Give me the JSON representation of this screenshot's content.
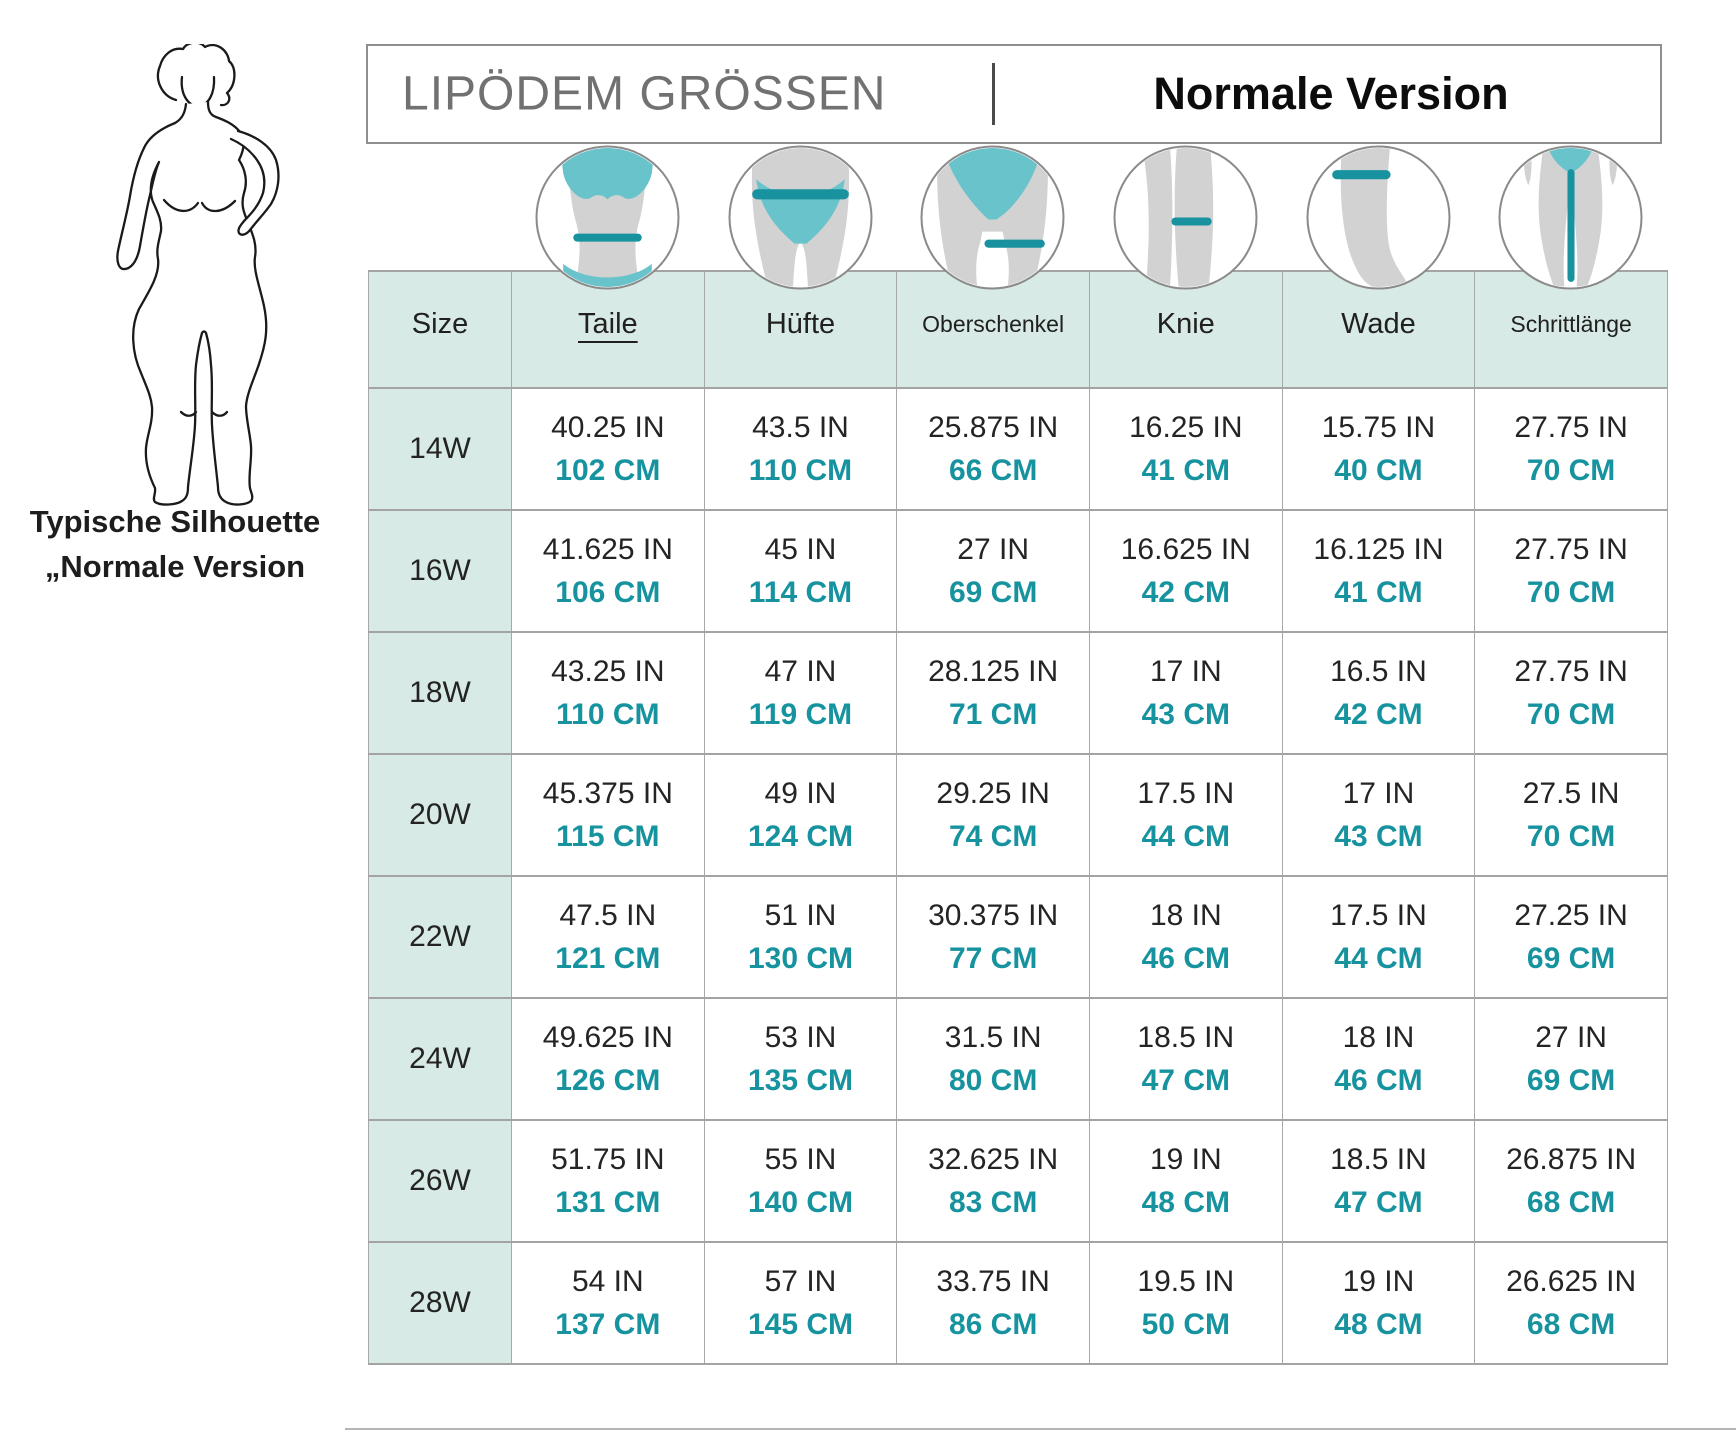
{
  "header": {
    "title": "LIPÖDEM GRÖSSEN",
    "subtitle": "Normale Version"
  },
  "silhouette": {
    "caption_line1": "Typische Silhouette",
    "caption_line2": "„Normale Version"
  },
  "colors": {
    "teal_text": "#16939f",
    "teal_line": "#17929e",
    "teal_light": "#68c3cb",
    "mint": "#d8eae5",
    "title_gray": "#717171",
    "body_gray": "#d2d2d2"
  },
  "table": {
    "size_header": "Size",
    "columns": [
      {
        "label": "Taile",
        "icon": "waist-icon",
        "underlined": true
      },
      {
        "label": "Hüfte",
        "icon": "hip-icon",
        "underlined": false
      },
      {
        "label": "Oberschenkel",
        "icon": "thigh-icon",
        "underlined": false
      },
      {
        "label": "Knie",
        "icon": "knee-icon",
        "underlined": false
      },
      {
        "label": "Wade",
        "icon": "calf-icon",
        "underlined": false
      },
      {
        "label": "Schrittlänge",
        "icon": "inseam-icon",
        "underlined": false
      }
    ],
    "rows": [
      {
        "size": "14W",
        "cells": [
          [
            "40.25 IN",
            "102 CM"
          ],
          [
            "43.5 IN",
            "110 CM"
          ],
          [
            "25.875 IN",
            "66 CM"
          ],
          [
            "16.25 IN",
            "41 CM"
          ],
          [
            "15.75 IN",
            "40 CM"
          ],
          [
            "27.75 IN",
            "70 CM"
          ]
        ]
      },
      {
        "size": "16W",
        "cells": [
          [
            "41.625 IN",
            "106 CM"
          ],
          [
            "45 IN",
            "114 CM"
          ],
          [
            "27 IN",
            "69 CM"
          ],
          [
            "16.625 IN",
            "42 CM"
          ],
          [
            "16.125 IN",
            "41 CM"
          ],
          [
            "27.75 IN",
            "70 CM"
          ]
        ]
      },
      {
        "size": "18W",
        "cells": [
          [
            "43.25 IN",
            "110 CM"
          ],
          [
            "47 IN",
            "119 CM"
          ],
          [
            "28.125 IN",
            "71 CM"
          ],
          [
            "17 IN",
            "43 CM"
          ],
          [
            "16.5 IN",
            "42 CM"
          ],
          [
            "27.75 IN",
            "70 CM"
          ]
        ]
      },
      {
        "size": "20W",
        "cells": [
          [
            "45.375 IN",
            "115 CM"
          ],
          [
            "49 IN",
            "124 CM"
          ],
          [
            "29.25 IN",
            "74 CM"
          ],
          [
            "17.5 IN",
            "44 CM"
          ],
          [
            "17 IN",
            "43 CM"
          ],
          [
            "27.5 IN",
            "70 CM"
          ]
        ]
      },
      {
        "size": "22W",
        "cells": [
          [
            "47.5 IN",
            "121 CM"
          ],
          [
            "51 IN",
            "130 CM"
          ],
          [
            "30.375 IN",
            "77 CM"
          ],
          [
            "18 IN",
            "46 CM"
          ],
          [
            "17.5 IN",
            "44 CM"
          ],
          [
            "27.25 IN",
            "69 CM"
          ]
        ]
      },
      {
        "size": "24W",
        "cells": [
          [
            "49.625 IN",
            "126 CM"
          ],
          [
            "53 IN",
            "135 CM"
          ],
          [
            "31.5 IN",
            "80 CM"
          ],
          [
            "18.5 IN",
            "47 CM"
          ],
          [
            "18 IN",
            "46 CM"
          ],
          [
            "27 IN",
            "69 CM"
          ]
        ]
      },
      {
        "size": "26W",
        "cells": [
          [
            "51.75 IN",
            "131 CM"
          ],
          [
            "55 IN",
            "140 CM"
          ],
          [
            "32.625 IN",
            "83 CM"
          ],
          [
            "19 IN",
            "48 CM"
          ],
          [
            "18.5 IN",
            "47 CM"
          ],
          [
            "26.875 IN",
            "68 CM"
          ]
        ]
      },
      {
        "size": "28W",
        "cells": [
          [
            "54 IN",
            "137 CM"
          ],
          [
            "57 IN",
            "145 CM"
          ],
          [
            "33.75 IN",
            "86 CM"
          ],
          [
            "19.5 IN",
            "50 CM"
          ],
          [
            "19 IN",
            "48 CM"
          ],
          [
            "26.625 IN",
            "68 CM"
          ]
        ]
      }
    ]
  }
}
